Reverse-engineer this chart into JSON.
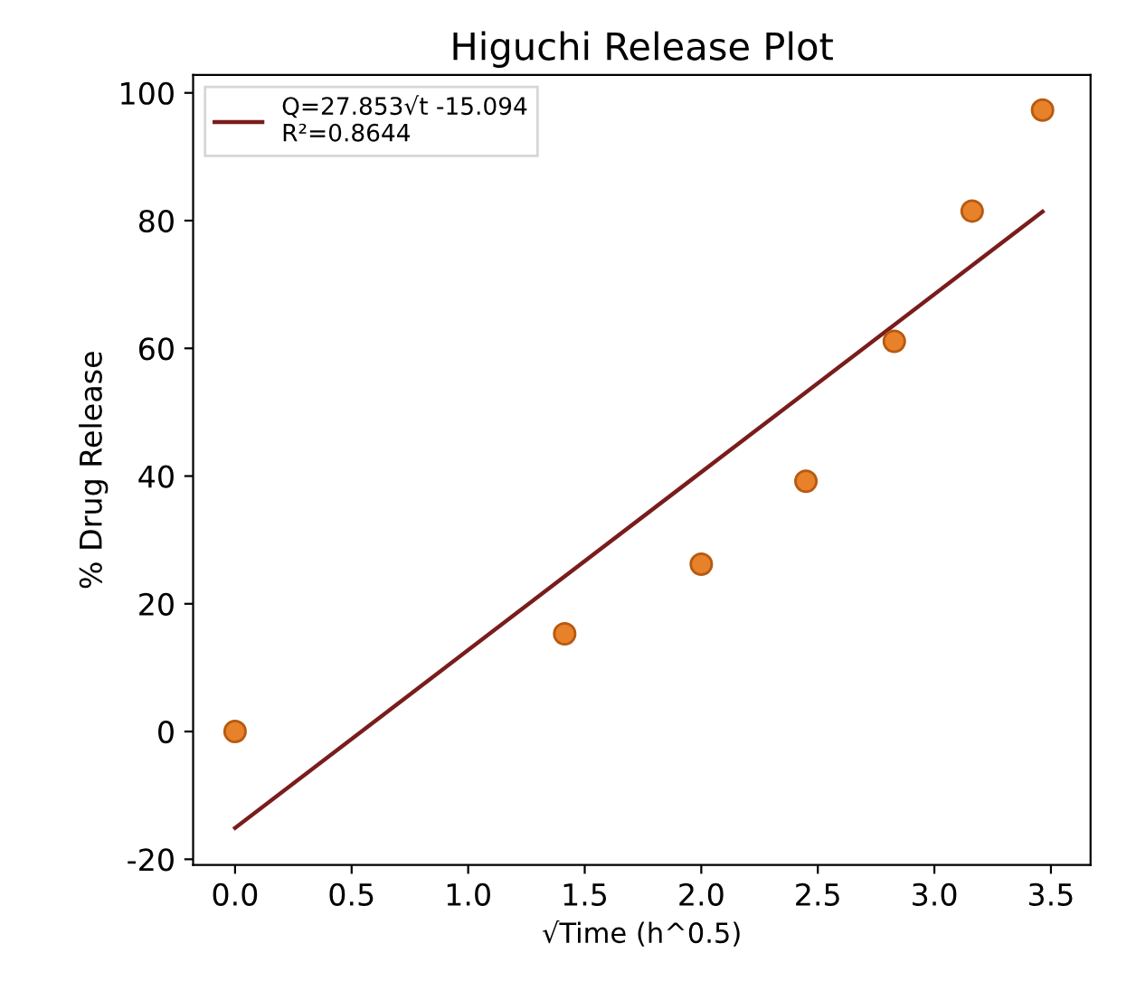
{
  "chart_data": {
    "type": "scatter",
    "title": "Higuchi Release Plot",
    "xlabel": "√Time (h^0.5)",
    "ylabel": "% Drug Release",
    "series": [
      {
        "color": "#e8822a",
        "marker": "circle",
        "x": [
          0,
          1.414,
          2,
          2.449,
          2.828,
          3.162,
          3.464
        ],
        "values": [
          0,
          15.3,
          26.2,
          39.2,
          61.1,
          81.5,
          97.3
        ]
      },
      {
        "type": "line",
        "name": "Q=27.853√t -15.094\nR²=0.8644",
        "color": "#7a1c1c",
        "marker": "none",
        "line_style": "solid",
        "x": [
          0,
          3.464
        ],
        "values": [
          -15.1,
          81.4
        ]
      }
    ],
    "xlim": [
      -0.18,
      3.67
    ],
    "ylim": [
      -20.9,
      102.8
    ],
    "xticks": [
      {
        "value": 0,
        "label": "0.0"
      },
      0.5,
      {
        "value": 1,
        "label": "1.0"
      },
      1.5,
      {
        "value": 2,
        "label": "2.0"
      },
      2.5,
      {
        "value": 3,
        "label": "3.0"
      },
      3.5
    ],
    "yticks": [
      -20,
      0,
      20,
      40,
      60,
      80,
      100
    ],
    "grid": false,
    "legend": "top left"
  }
}
